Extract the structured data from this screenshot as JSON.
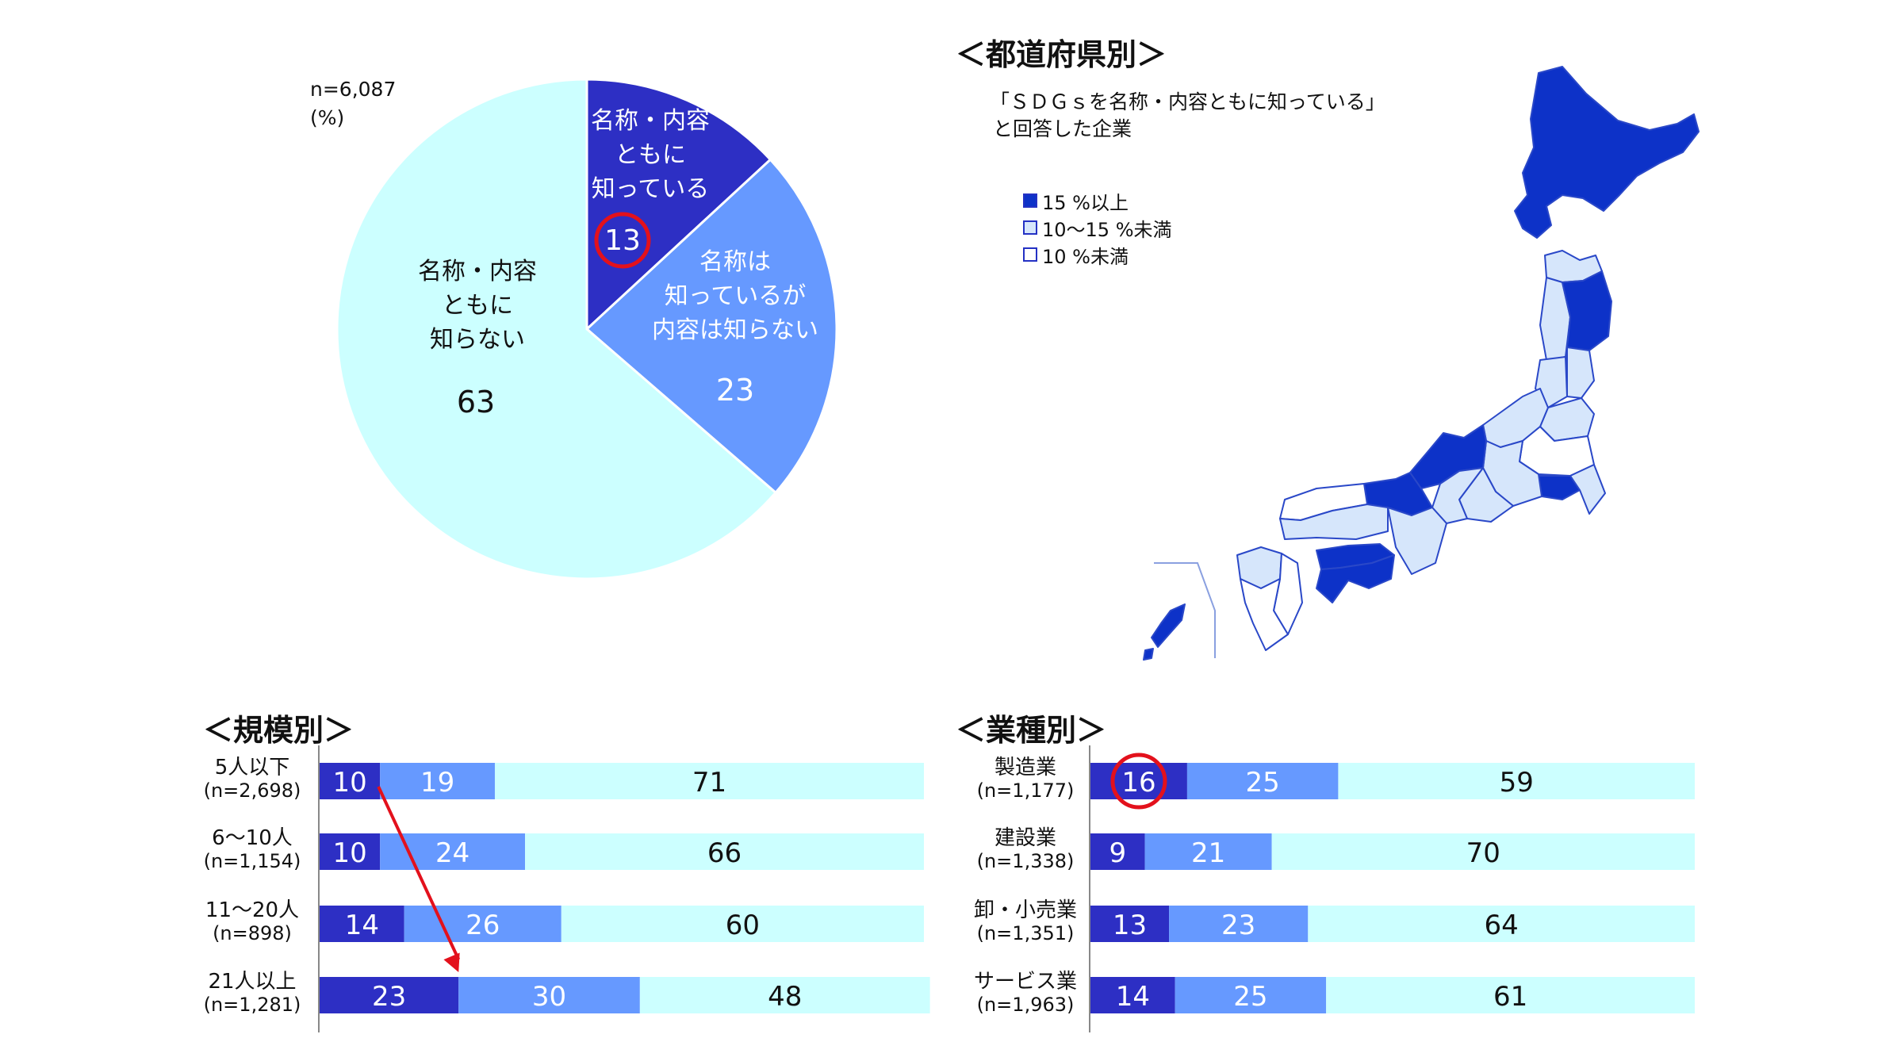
{
  "colors": {
    "dark": "#2d2fc4",
    "mid": "#6699ff",
    "light": "#ccffff",
    "map_dark": "#0d32c8",
    "map_light": "#d6e6fb",
    "map_border": "#2a48c8",
    "highlight_circle": "#e3111c",
    "arrow": "#e3111c"
  },
  "pie": {
    "n_label": "n=6,087",
    "unit_label": "(%)"
  },
  "map": {
    "title": "＜都道府県別＞",
    "caption_line1": "「ＳＤＧｓを名称・内容ともに知っている」",
    "caption_line2": "と回答した企業",
    "legend": [
      {
        "label": "15 %以上",
        "color": "#0d32c8"
      },
      {
        "label": "10～15 %未満",
        "color": "#d6e6fb"
      },
      {
        "label": "10 %未満",
        "color": "#ffffff"
      }
    ]
  },
  "size_section": {
    "title": "＜規模別＞"
  },
  "industry_section": {
    "title": "＜業種別＞"
  },
  "chart_data": [
    {
      "type": "pie",
      "categories": [
        "名称・内容ともに知っている",
        "名称は知っているが内容は知らない",
        "名称・内容ともに知らない"
      ],
      "values": [
        13,
        23,
        63
      ],
      "label_lines": [
        [
          "名称・内容",
          "ともに",
          "知っている"
        ],
        [
          "名称は",
          "知っているが",
          "内容は知らない"
        ],
        [
          "名称・内容",
          "ともに",
          "知らない"
        ]
      ],
      "colors": [
        "#2d2fc4",
        "#6699ff",
        "#ccffff"
      ],
      "highlight_index": 0
    },
    {
      "type": "bar",
      "stacked": true,
      "orientation": "horizontal",
      "categories": [
        "5人以下",
        "6～10人",
        "11～20人",
        "21人以上"
      ],
      "sublabels": [
        "(n=2,698)",
        "(n=1,154)",
        "(n=898)",
        "(n=1,281)"
      ],
      "series": [
        {
          "values": [
            10,
            10,
            14,
            23
          ]
        },
        {
          "values": [
            19,
            24,
            26,
            30
          ]
        },
        {
          "values": [
            71,
            66,
            60,
            48
          ]
        }
      ],
      "arrow": {
        "from_category": 0,
        "to_category": 3
      }
    },
    {
      "type": "bar",
      "stacked": true,
      "orientation": "horizontal",
      "categories": [
        "製造業",
        "建設業",
        "卸・小売業",
        "サービス業"
      ],
      "sublabels": [
        "(n=1,177)",
        "(n=1,338)",
        "(n=1,351)",
        "(n=1,963)"
      ],
      "series": [
        {
          "values": [
            16,
            9,
            13,
            14
          ]
        },
        {
          "values": [
            25,
            21,
            23,
            25
          ]
        },
        {
          "values": [
            59,
            70,
            64,
            61
          ]
        }
      ],
      "highlight": {
        "category": 0,
        "series": 0
      }
    }
  ]
}
